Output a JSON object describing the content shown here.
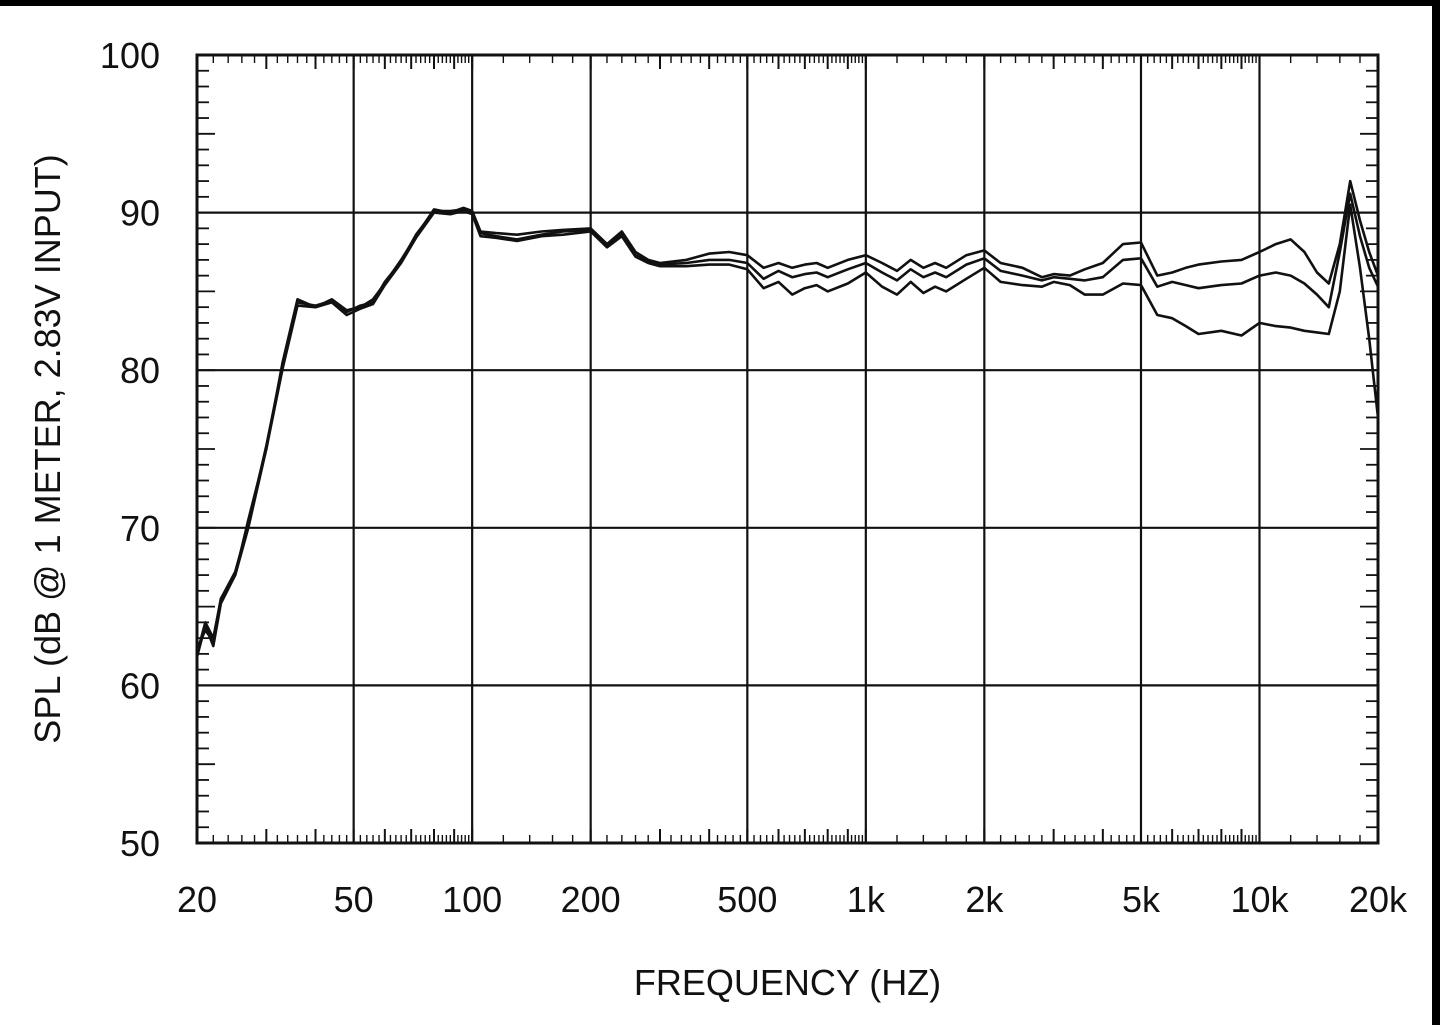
{
  "chart_data": {
    "type": "line",
    "title": "",
    "xlabel": "FREQUENCY  (HZ)",
    "ylabel": "SPL (dB @ 1 METER, 2.83V INPUT)",
    "x_scale": "log",
    "xlim": [
      20,
      20000
    ],
    "ylim": [
      50,
      100
    ],
    "grid": true,
    "legend": "none",
    "x_ticks": [
      {
        "value": 20,
        "label": "20"
      },
      {
        "value": 50,
        "label": "50"
      },
      {
        "value": 100,
        "label": "100"
      },
      {
        "value": 200,
        "label": "200"
      },
      {
        "value": 500,
        "label": "500"
      },
      {
        "value": 1000,
        "label": "1k"
      },
      {
        "value": 2000,
        "label": "2k"
      },
      {
        "value": 5000,
        "label": "5k"
      },
      {
        "value": 10000,
        "label": "10k"
      },
      {
        "value": 20000,
        "label": "20k"
      }
    ],
    "y_ticks": [
      {
        "value": 50,
        "label": "50"
      },
      {
        "value": 60,
        "label": "60"
      },
      {
        "value": 70,
        "label": "70"
      },
      {
        "value": 80,
        "label": "80"
      },
      {
        "value": 90,
        "label": "90"
      },
      {
        "value": 100,
        "label": "100"
      }
    ],
    "line_color": "#111111",
    "series": [
      {
        "x": [
          20,
          21,
          22,
          23,
          25,
          27,
          30,
          33,
          36,
          40,
          44,
          48,
          52,
          56,
          60,
          66,
          72,
          80,
          88,
          95,
          100,
          105,
          115,
          130,
          150,
          170,
          200,
          220,
          240,
          260,
          280,
          300,
          350,
          400,
          450,
          500,
          550,
          600,
          650,
          700,
          750,
          800,
          900,
          1000,
          1100,
          1200,
          1300,
          1400,
          1500,
          1600,
          1800,
          2000,
          2200,
          2500,
          2800,
          3000,
          3300,
          3600,
          4000,
          4500,
          5000,
          5500,
          6000,
          6500,
          7000,
          8000,
          9000,
          10000,
          11000,
          12000,
          13000,
          14000,
          15000,
          16000,
          17000,
          18000,
          19000,
          20000
        ],
        "y": [
          62,
          64,
          63,
          65.5,
          67,
          70.5,
          75,
          80.5,
          84.5,
          84,
          84.5,
          83.8,
          84,
          84.5,
          85.5,
          87,
          88.5,
          90.2,
          90,
          90.3,
          90.1,
          88.8,
          88.7,
          88.6,
          88.8,
          88.9,
          89,
          88,
          88.8,
          87.5,
          87,
          86.8,
          87,
          87.4,
          87.5,
          87.3,
          86.5,
          86.8,
          86.5,
          86.7,
          86.8,
          86.5,
          87,
          87.3,
          86.8,
          86.3,
          87,
          86.5,
          86.8,
          86.5,
          87.3,
          87.6,
          86.8,
          86.5,
          85.9,
          86.1,
          86.0,
          86.4,
          86.8,
          88.0,
          88.1,
          86.0,
          86.2,
          86.5,
          86.7,
          86.9,
          87.0,
          87.5,
          88.0,
          88.3,
          87.5,
          86.2,
          85.5,
          88.0,
          92.0,
          89.5,
          87.5,
          86.0
        ]
      },
      {
        "x": [
          20,
          21,
          22,
          23,
          25,
          27,
          30,
          33,
          36,
          40,
          44,
          48,
          52,
          56,
          60,
          66,
          72,
          80,
          88,
          95,
          100,
          105,
          115,
          130,
          150,
          170,
          200,
          220,
          240,
          260,
          280,
          300,
          350,
          400,
          450,
          500,
          550,
          600,
          650,
          700,
          750,
          800,
          900,
          1000,
          1100,
          1200,
          1300,
          1400,
          1500,
          1600,
          1800,
          2000,
          2200,
          2500,
          2800,
          3000,
          3300,
          3600,
          4000,
          4500,
          5000,
          5500,
          6000,
          6500,
          7000,
          8000,
          9000,
          10000,
          11000,
          12000,
          13000,
          14000,
          15000,
          16000,
          17000,
          18000,
          19000,
          20000
        ],
        "y": [
          62.3,
          63.5,
          62.8,
          65.5,
          67.2,
          70.2,
          75.2,
          80.3,
          84.3,
          84.1,
          84.4,
          83.7,
          84.1,
          84.3,
          85.6,
          86.9,
          88.6,
          90.1,
          90.1,
          90.2,
          90.0,
          88.7,
          88.5,
          88.3,
          88.6,
          88.8,
          88.9,
          87.9,
          88.6,
          87.3,
          86.9,
          86.7,
          86.8,
          87.0,
          87.0,
          86.8,
          85.8,
          86.3,
          85.9,
          86.1,
          86.2,
          85.9,
          86.4,
          86.8,
          86.2,
          85.7,
          86.4,
          85.9,
          86.2,
          85.9,
          86.7,
          87.1,
          86.3,
          86.0,
          85.7,
          85.9,
          85.8,
          85.7,
          85.9,
          87.0,
          87.1,
          85.3,
          85.6,
          85.4,
          85.2,
          85.4,
          85.5,
          86.0,
          86.2,
          86.0,
          85.5,
          84.8,
          84.0,
          87.5,
          91.2,
          88.5,
          86.5,
          85.3
        ]
      },
      {
        "x": [
          20,
          21,
          22,
          23,
          25,
          27,
          30,
          33,
          36,
          40,
          44,
          48,
          52,
          56,
          60,
          66,
          72,
          80,
          88,
          95,
          100,
          105,
          115,
          130,
          150,
          170,
          200,
          220,
          240,
          260,
          280,
          300,
          350,
          400,
          450,
          500,
          550,
          600,
          650,
          700,
          750,
          800,
          900,
          1000,
          1100,
          1200,
          1300,
          1400,
          1500,
          1600,
          1800,
          2000,
          2200,
          2500,
          2800,
          3000,
          3300,
          3600,
          4000,
          4500,
          5000,
          5500,
          6000,
          6500,
          7000,
          8000,
          9000,
          10000,
          11000,
          12000,
          13000,
          14000,
          15000,
          16000,
          17000,
          18000,
          19000,
          20000
        ],
        "y": [
          61.8,
          63.8,
          62.5,
          65.2,
          67.0,
          70.0,
          75.0,
          80.1,
          84.1,
          84.0,
          84.3,
          83.5,
          83.9,
          84.2,
          85.4,
          86.8,
          88.4,
          90.0,
          89.9,
          90.1,
          89.9,
          88.5,
          88.4,
          88.2,
          88.5,
          88.6,
          88.8,
          87.8,
          88.5,
          87.2,
          86.8,
          86.6,
          86.6,
          86.7,
          86.7,
          86.4,
          85.2,
          85.6,
          84.8,
          85.2,
          85.4,
          85.0,
          85.5,
          86.2,
          85.3,
          84.8,
          85.6,
          84.9,
          85.3,
          85.0,
          85.8,
          86.5,
          85.6,
          85.4,
          85.3,
          85.6,
          85.4,
          84.8,
          84.8,
          85.5,
          85.4,
          83.5,
          83.3,
          82.8,
          82.3,
          82.5,
          82.2,
          83.0,
          82.8,
          82.7,
          82.5,
          82.4,
          82.3,
          85.0,
          90.5,
          86.5,
          82.0,
          77.0
        ]
      }
    ]
  }
}
